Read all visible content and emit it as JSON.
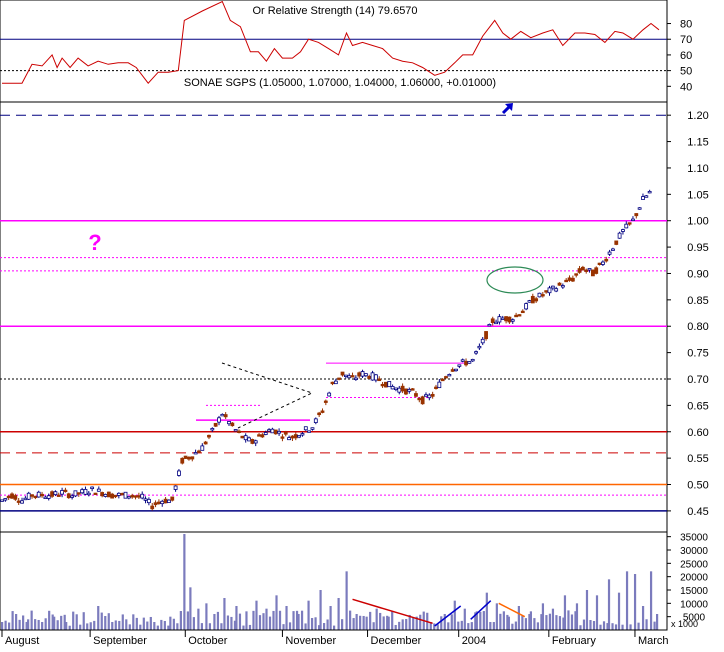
{
  "rsi_panel": {
    "title_overlap": "Or Relative Strength (14) 79.6570",
    "ticks": [
      "80",
      "70",
      "60",
      "50",
      "40"
    ],
    "ref_line": 70,
    "dotted_line": 50,
    "color": "#cc0000"
  },
  "price_panel": {
    "title": "SONAE SGPS (1.05000, 1.07000, 1.04000, 1.06000, +0.01000)",
    "ticks": [
      "1.20",
      "1.15",
      "1.10",
      "1.05",
      "1.00",
      "0.95",
      "0.90",
      "0.85",
      "0.80",
      "0.75",
      "0.70",
      "0.65",
      "0.60",
      "0.55",
      "0.50",
      "0.45"
    ],
    "question_mark": "?",
    "colors": {
      "up": "#000080",
      "down": "#993300",
      "magenta": "#ff00ff",
      "red": "#cc0000",
      "orange": "#ff6600",
      "blue": "#0000cc"
    }
  },
  "volume_panel": {
    "ticks": [
      "35000",
      "30000",
      "25000",
      "20000",
      "15000",
      "10000",
      "5000"
    ],
    "scale_note": "x 1000",
    "bar_color": "#7b7bbd"
  },
  "x_axis": {
    "labels": [
      "August",
      "September",
      "October",
      "November",
      "December",
      "2004",
      "February",
      "March"
    ]
  },
  "chart_data": {
    "type": "candlestick",
    "title": "SONAE SGPS (1.05000, 1.07000, 1.04000, 1.06000, +0.01000)",
    "last": {
      "open": 1.05,
      "high": 1.07,
      "low": 1.04,
      "close": 1.06,
      "change": 0.01
    },
    "period": [
      "August 2003",
      "March 2004"
    ],
    "price_ylim": [
      0.45,
      1.2
    ],
    "price_path": [
      [
        0,
        0.47
      ],
      [
        10,
        0.48
      ],
      [
        20,
        0.47
      ],
      [
        30,
        0.48
      ],
      [
        40,
        0.48
      ],
      [
        50,
        0.48
      ],
      [
        60,
        0.485
      ],
      [
        70,
        0.48
      ],
      [
        80,
        0.485
      ],
      [
        90,
        0.49
      ],
      [
        100,
        0.485
      ],
      [
        110,
        0.48
      ],
      [
        120,
        0.48
      ],
      [
        130,
        0.48
      ],
      [
        140,
        0.475
      ],
      [
        150,
        0.46
      ],
      [
        160,
        0.47
      ],
      [
        170,
        0.47
      ],
      [
        180,
        0.545
      ],
      [
        190,
        0.555
      ],
      [
        200,
        0.57
      ],
      [
        210,
        0.6
      ],
      [
        220,
        0.635
      ],
      [
        230,
        0.61
      ],
      [
        240,
        0.59
      ],
      [
        250,
        0.58
      ],
      [
        260,
        0.595
      ],
      [
        270,
        0.605
      ],
      [
        280,
        0.595
      ],
      [
        290,
        0.59
      ],
      [
        300,
        0.6
      ],
      [
        310,
        0.61
      ],
      [
        320,
        0.64
      ],
      [
        330,
        0.69
      ],
      [
        340,
        0.71
      ],
      [
        350,
        0.7
      ],
      [
        360,
        0.71
      ],
      [
        370,
        0.705
      ],
      [
        380,
        0.695
      ],
      [
        390,
        0.685
      ],
      [
        400,
        0.68
      ],
      [
        410,
        0.675
      ],
      [
        420,
        0.66
      ],
      [
        430,
        0.67
      ],
      [
        440,
        0.7
      ],
      [
        450,
        0.72
      ],
      [
        460,
        0.73
      ],
      [
        470,
        0.735
      ],
      [
        480,
        0.77
      ],
      [
        490,
        0.81
      ],
      [
        500,
        0.815
      ],
      [
        510,
        0.815
      ],
      [
        520,
        0.83
      ],
      [
        530,
        0.85
      ],
      [
        540,
        0.86
      ],
      [
        550,
        0.87
      ],
      [
        560,
        0.88
      ],
      [
        570,
        0.89
      ],
      [
        580,
        0.91
      ],
      [
        590,
        0.9
      ],
      [
        600,
        0.92
      ],
      [
        610,
        0.95
      ],
      [
        620,
        0.98
      ],
      [
        630,
        1.0
      ],
      [
        640,
        1.04
      ],
      [
        650,
        1.06
      ]
    ],
    "horizontal_levels": [
      {
        "value": 1.2,
        "style": "dashed",
        "color": "#000080"
      },
      {
        "value": 1.0,
        "style": "solid",
        "color": "#ff00ff"
      },
      {
        "value": 0.93,
        "style": "dotted",
        "color": "#ff00ff"
      },
      {
        "value": 0.905,
        "style": "dotted",
        "color": "#ff00ff"
      },
      {
        "value": 0.8,
        "style": "solid",
        "color": "#ff00ff"
      },
      {
        "value": 0.7,
        "style": "dotted",
        "color": "#000000"
      },
      {
        "value": 0.6,
        "style": "solid",
        "color": "#cc0000"
      },
      {
        "value": 0.56,
        "style": "dashed",
        "color": "#cc0000"
      },
      {
        "value": 0.5,
        "style": "solid",
        "color": "#ff6600"
      },
      {
        "value": 0.48,
        "style": "dotted",
        "color": "#ff00ff"
      },
      {
        "value": 0.45,
        "style": "solid",
        "color": "#000080"
      }
    ],
    "volume_ylim": [
      0,
      36000
    ],
    "volume": [
      [
        0,
        3000
      ],
      [
        14,
        6000
      ],
      [
        26,
        4000
      ],
      [
        40,
        3000
      ],
      [
        52,
        5000
      ],
      [
        64,
        3000
      ],
      [
        78,
        2000
      ],
      [
        96,
        9000
      ],
      [
        110,
        3000
      ],
      [
        124,
        4000
      ],
      [
        138,
        2000
      ],
      [
        152,
        3000
      ],
      [
        168,
        5000
      ],
      [
        182,
        36000
      ],
      [
        188,
        16000
      ],
      [
        196,
        8000
      ],
      [
        204,
        10000
      ],
      [
        212,
        6000
      ],
      [
        222,
        12000
      ],
      [
        234,
        9000
      ],
      [
        244,
        7000
      ],
      [
        254,
        11000
      ],
      [
        264,
        8000
      ],
      [
        274,
        13000
      ],
      [
        284,
        9000
      ],
      [
        296,
        6000
      ],
      [
        306,
        11000
      ],
      [
        318,
        15000
      ],
      [
        328,
        9000
      ],
      [
        336,
        12000
      ],
      [
        344,
        22000
      ],
      [
        354,
        6000
      ],
      [
        364,
        5000
      ],
      [
        374,
        8000
      ],
      [
        386,
        5000
      ],
      [
        400,
        4000
      ],
      [
        414,
        5000
      ],
      [
        428,
        3000
      ],
      [
        442,
        6000
      ],
      [
        452,
        11000
      ],
      [
        462,
        8000
      ],
      [
        474,
        7000
      ],
      [
        484,
        14000
      ],
      [
        494,
        10000
      ],
      [
        506,
        5000
      ],
      [
        516,
        9000
      ],
      [
        528,
        7000
      ],
      [
        540,
        10000
      ],
      [
        550,
        8000
      ],
      [
        562,
        13000
      ],
      [
        574,
        10000
      ],
      [
        584,
        15000
      ],
      [
        594,
        13000
      ],
      [
        606,
        19000
      ],
      [
        616,
        14000
      ],
      [
        624,
        22000
      ],
      [
        632,
        21000
      ],
      [
        640,
        9000
      ],
      [
        648,
        22000
      ],
      [
        654,
        6000
      ]
    ],
    "rsi_ylim": [
      30,
      95
    ],
    "rsi": [
      [
        0,
        42
      ],
      [
        20,
        42
      ],
      [
        30,
        54
      ],
      [
        40,
        53
      ],
      [
        50,
        60
      ],
      [
        55,
        52
      ],
      [
        60,
        58
      ],
      [
        68,
        52
      ],
      [
        76,
        58
      ],
      [
        86,
        53
      ],
      [
        96,
        56
      ],
      [
        106,
        54
      ],
      [
        116,
        55
      ],
      [
        126,
        55
      ],
      [
        134,
        52
      ],
      [
        146,
        42
      ],
      [
        156,
        49
      ],
      [
        166,
        49
      ],
      [
        176,
        50
      ],
      [
        182,
        82
      ],
      [
        200,
        88
      ],
      [
        220,
        94
      ],
      [
        228,
        82
      ],
      [
        238,
        78
      ],
      [
        248,
        62
      ],
      [
        256,
        62
      ],
      [
        264,
        56
      ],
      [
        272,
        64
      ],
      [
        280,
        58
      ],
      [
        290,
        58
      ],
      [
        298,
        62
      ],
      [
        306,
        70
      ],
      [
        316,
        68
      ],
      [
        326,
        64
      ],
      [
        336,
        60
      ],
      [
        344,
        74
      ],
      [
        350,
        66
      ],
      [
        360,
        68
      ],
      [
        370,
        66
      ],
      [
        380,
        64
      ],
      [
        390,
        58
      ],
      [
        400,
        56
      ],
      [
        410,
        55
      ],
      [
        420,
        52
      ],
      [
        432,
        47
      ],
      [
        442,
        49
      ],
      [
        452,
        55
      ],
      [
        460,
        60
      ],
      [
        470,
        60
      ],
      [
        480,
        72
      ],
      [
        492,
        82
      ],
      [
        500,
        74
      ],
      [
        508,
        70
      ],
      [
        518,
        75
      ],
      [
        528,
        71
      ],
      [
        540,
        74
      ],
      [
        550,
        76
      ],
      [
        560,
        66
      ],
      [
        572,
        74
      ],
      [
        582,
        74
      ],
      [
        592,
        73
      ],
      [
        602,
        68
      ],
      [
        612,
        75
      ],
      [
        620,
        74
      ],
      [
        630,
        70
      ],
      [
        640,
        76
      ],
      [
        648,
        80
      ],
      [
        656,
        76
      ]
    ]
  }
}
